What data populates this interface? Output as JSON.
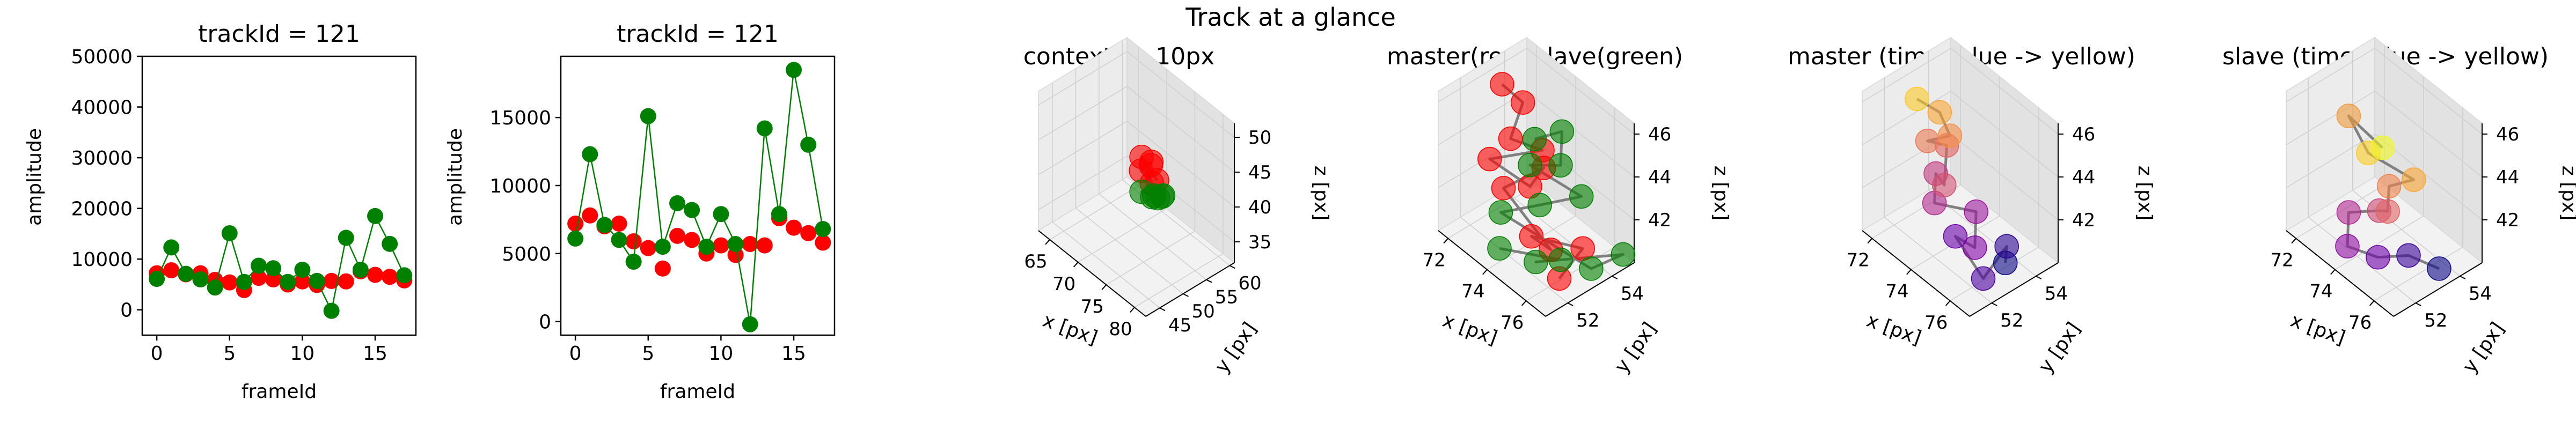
{
  "figure": {
    "suptitle": "Track at a glance"
  },
  "chart_data": [
    {
      "type": "scatter",
      "title": "trackId = 121",
      "xlabel": "frameId",
      "ylabel": "amplitude",
      "xlim": [
        -1,
        17.8
      ],
      "ylim": [
        -5000,
        50000
      ],
      "xticks": [
        0,
        5,
        10,
        15
      ],
      "yticks": [
        0,
        10000,
        20000,
        30000,
        40000,
        50000
      ],
      "series": [
        {
          "color": "#ff0000",
          "connected": false,
          "x": [
            0,
            1,
            2,
            3,
            4,
            5,
            6,
            7,
            8,
            9,
            10,
            11,
            12,
            13,
            14,
            15,
            16,
            17
          ],
          "y": [
            7200,
            7800,
            7000,
            7200,
            5900,
            5400,
            3900,
            6300,
            6000,
            5000,
            5600,
            4900,
            5700,
            5600,
            7600,
            6900,
            6500,
            5800
          ]
        },
        {
          "color": "#008000",
          "connected": true,
          "x": [
            0,
            1,
            2,
            3,
            4,
            5,
            6,
            7,
            8,
            9,
            10,
            11,
            12,
            13,
            14,
            15,
            16,
            17
          ],
          "y": [
            6100,
            12300,
            7100,
            6000,
            4400,
            15100,
            5500,
            8700,
            8200,
            5500,
            7900,
            5700,
            -200,
            14200,
            7900,
            18500,
            13000,
            6800
          ]
        }
      ]
    },
    {
      "type": "scatter",
      "title": "trackId = 121",
      "xlabel": "frameId",
      "ylabel": "amplitude",
      "xlim": [
        -1,
        17.8
      ],
      "ylim": [
        -1000,
        19500
      ],
      "xticks": [
        0,
        5,
        10,
        15
      ],
      "yticks": [
        0,
        5000,
        10000,
        15000
      ],
      "series": [
        {
          "color": "#ff0000",
          "connected": false,
          "x": [
            0,
            1,
            2,
            3,
            4,
            5,
            6,
            7,
            8,
            9,
            10,
            11,
            12,
            13,
            14,
            15,
            16,
            17
          ],
          "y": [
            7200,
            7800,
            7000,
            7200,
            5900,
            5400,
            3900,
            6300,
            6000,
            5000,
            5600,
            4900,
            5700,
            5600,
            7600,
            6900,
            6500,
            5800
          ]
        },
        {
          "color": "#008000",
          "connected": true,
          "x": [
            0,
            1,
            2,
            3,
            4,
            5,
            6,
            7,
            8,
            9,
            10,
            11,
            12,
            13,
            14,
            15,
            16,
            17
          ],
          "y": [
            6100,
            12300,
            7100,
            6000,
            4400,
            15100,
            5500,
            8700,
            8200,
            5500,
            7900,
            5700,
            -200,
            14200,
            7900,
            18500,
            13000,
            6800
          ]
        }
      ]
    },
    {
      "type": "scatter3d",
      "title": "context +- 10px",
      "xlabel": "x [px]",
      "ylabel": "y [px]",
      "zlabel": "z [px]",
      "xlim": [
        63,
        82
      ],
      "ylim": [
        42,
        61
      ],
      "zlim": [
        32,
        52
      ],
      "xticks": [
        65,
        70,
        75,
        80
      ],
      "yticks": [
        45,
        50,
        55,
        60
      ],
      "zticks": [
        35,
        40,
        45,
        50
      ],
      "series": [
        {
          "color": "#ff0000",
          "points": [
            [
              73,
              54,
              43
            ],
            [
              73.5,
              53.5,
              44
            ],
            [
              72.5,
              52.5,
              42.5
            ],
            [
              74,
              53,
              41.5
            ],
            [
              73,
              52,
              45
            ],
            [
              74.5,
              53.5,
              42
            ]
          ]
        },
        {
          "color": "#008000",
          "points": [
            [
              74,
              53.5,
              39.5
            ],
            [
              75.5,
              52.5,
              40.5
            ],
            [
              73,
              52,
              40
            ],
            [
              76,
              53,
              41
            ],
            [
              74.5,
              52.5,
              40
            ],
            [
              75,
              54,
              39.8
            ]
          ]
        }
      ]
    },
    {
      "type": "scatter3d",
      "title": "master(red) slave(green)",
      "xlabel": "x [px]",
      "ylabel": "y [px]",
      "zlabel": "z [px]",
      "xlim": [
        71.5,
        77
      ],
      "ylim": [
        51,
        55
      ],
      "zlim": [
        40,
        46.5
      ],
      "xticks": [
        72,
        74,
        76
      ],
      "yticks": [
        52,
        54
      ],
      "zticks": [
        42,
        44,
        46
      ],
      "series": [
        {
          "color": "#ff0000",
          "points": [
            [
              72.5,
              53,
              46.3
            ],
            [
              73,
              53.5,
              45.5
            ],
            [
              73.5,
              52.5,
              44.8
            ],
            [
              74,
              53.5,
              44
            ],
            [
              73,
              52,
              43.8
            ],
            [
              74.5,
              52.5,
              43.3
            ],
            [
              73.5,
              54,
              42.5
            ],
            [
              72.8,
              52.8,
              41.8
            ],
            [
              75,
              53,
              40.4
            ],
            [
              74,
              53,
              40.3
            ],
            [
              75.5,
              54,
              40.2
            ],
            [
              76,
              52.5,
              40.1
            ]
          ]
        },
        {
          "color": "#008000",
          "points": [
            [
              75.3,
              52,
              46.4
            ],
            [
              75,
              53.5,
              45.6
            ],
            [
              75.5,
              53,
              44.7
            ],
            [
              74.5,
              52.5,
              44.3
            ],
            [
              76,
              53.5,
              43.3
            ],
            [
              75,
              52.5,
              42.8
            ],
            [
              73,
              52.5,
              41
            ],
            [
              76.5,
              53.5,
              40.3
            ],
            [
              77,
              54.5,
              40.7
            ],
            [
              74.8,
              52.5,
              40
            ],
            [
              75.5,
              53,
              40.3
            ],
            [
              73.5,
              52,
              40
            ]
          ]
        }
      ]
    },
    {
      "type": "scatter3d",
      "title": "master (time: blue -> yellow)",
      "xlabel": "x [px]",
      "ylabel": "y [px]",
      "zlabel": "z [px]",
      "xlim": [
        71.5,
        77
      ],
      "ylim": [
        51,
        55
      ],
      "zlim": [
        40,
        46.5
      ],
      "xticks": [
        72,
        74,
        76
      ],
      "yticks": [
        52,
        54
      ],
      "zticks": [
        42,
        44,
        46
      ],
      "points": [
        [
          76,
          53.5,
          40.2
        ],
        [
          75.5,
          54,
          40.3
        ],
        [
          76,
          52.5,
          40.1
        ],
        [
          74,
          53,
          40.3
        ],
        [
          75,
          53,
          40.5
        ],
        [
          74.5,
          53.5,
          41.5
        ],
        [
          73.5,
          52.5,
          41.8
        ],
        [
          73,
          53,
          42.5
        ],
        [
          74,
          52.5,
          43
        ],
        [
          73,
          53.5,
          43.5
        ],
        [
          72.8,
          52.8,
          44
        ],
        [
          73.5,
          53.2,
          44.5
        ],
        [
          73.2,
          53,
          45.5
        ],
        [
          72.6,
          52.5,
          46
        ]
      ],
      "colors": [
        "#0d0887",
        "#2c0594",
        "#4c02a1",
        "#6a00a8",
        "#8405a7",
        "#9c179e",
        "#b12a90",
        "#c33d80",
        "#d35171",
        "#e16462",
        "#ed7953",
        "#f79044",
        "#fca636",
        "#fdca26"
      ]
    },
    {
      "type": "scatter3d",
      "title": "slave (time: blue -> yellow)",
      "xlabel": "x [px]",
      "ylabel": "y [px]",
      "zlabel": "z [px]",
      "xlim": [
        71.5,
        77
      ],
      "ylim": [
        51,
        55
      ],
      "zlim": [
        40,
        46.5
      ],
      "xticks": [
        72,
        74,
        76
      ],
      "yticks": [
        52,
        54
      ],
      "zticks": [
        42,
        44,
        46
      ],
      "points": [
        [
          76.5,
          53.5,
          40.3
        ],
        [
          75.5,
          53,
          40.5
        ],
        [
          74.5,
          52.5,
          40
        ],
        [
          73.5,
          52,
          40.1
        ],
        [
          73,
          52.5,
          41
        ],
        [
          74,
          53,
          41.5
        ],
        [
          75,
          52.5,
          42.5
        ],
        [
          74.5,
          53,
          43
        ],
        [
          75.2,
          53.5,
          43.5
        ],
        [
          74,
          52.5,
          44.5
        ],
        [
          73,
          52.5,
          45.5
        ],
        [
          75.3,
          52,
          46
        ]
      ],
      "colors": [
        "#0d0887",
        "#3b049a",
        "#6a00a8",
        "#8f0da4",
        "#b12a90",
        "#cc4778",
        "#e16462",
        "#f2844b",
        "#fca636",
        "#fccd25",
        "#ef9b3a",
        "#f0f921"
      ]
    }
  ]
}
